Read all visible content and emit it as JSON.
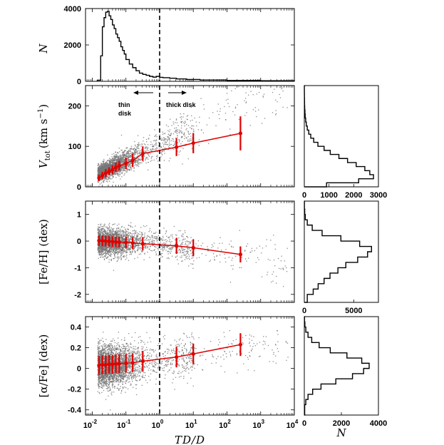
{
  "chart_data": [
    {
      "type": "histogram",
      "panel": "top",
      "ylabel": "N",
      "ylim": [
        0,
        4000
      ],
      "yticks": [
        "0",
        "2000",
        "4000"
      ],
      "x_log": true,
      "xlim_log10": [
        -2.2,
        4.0
      ],
      "bins_log10": [
        -1.85,
        -1.75,
        -1.7,
        -1.65,
        -1.6,
        -1.55,
        -1.5,
        -1.45,
        -1.4,
        -1.35,
        -1.3,
        -1.25,
        -1.2,
        -1.15,
        -1.1,
        -1.05,
        -1.0,
        -0.9,
        -0.8,
        -0.7,
        -0.6,
        -0.5,
        -0.4,
        -0.3,
        -0.2,
        -0.1,
        0.0,
        0.1,
        0.3,
        0.5,
        0.8,
        1.2,
        2.0,
        3.0,
        4.0
      ],
      "counts": [
        60,
        1400,
        3000,
        3500,
        3800,
        3850,
        3600,
        3400,
        3100,
        2900,
        2600,
        2400,
        2200,
        1900,
        1700,
        1500,
        1200,
        950,
        750,
        580,
        450,
        380,
        330,
        270,
        230,
        270,
        220,
        200,
        170,
        130,
        100,
        70,
        45,
        30
      ]
    },
    {
      "type": "scatter",
      "panel": "vtot",
      "ylabel_math": "V",
      "ylabel_sub": "tot",
      "ylabel_units": "(km s",
      "ylabel_exp": "−1",
      "ylabel_close": ")",
      "ylim": [
        0,
        250
      ],
      "yticks": [
        "0",
        "100",
        "200"
      ],
      "annotations": {
        "thin": [
          "thin",
          "disk"
        ],
        "thick": "thick disk"
      },
      "trend_x_log10": [
        -1.8,
        -1.7,
        -1.6,
        -1.5,
        -1.4,
        -1.3,
        -1.2,
        -1.0,
        -0.8,
        -0.5,
        0.5,
        1.0,
        2.4
      ],
      "trend_y": [
        22,
        28,
        34,
        38,
        42,
        48,
        52,
        58,
        65,
        82,
        98,
        108,
        132
      ],
      "trend_err": [
        8,
        9,
        10,
        10,
        11,
        12,
        12,
        14,
        16,
        18,
        22,
        25,
        42
      ]
    },
    {
      "type": "scatter",
      "panel": "feh",
      "ylabel": "[Fe/H] (dex)",
      "ylim": [
        -2.3,
        1.5
      ],
      "yticks": [
        "-2",
        "-1",
        "0",
        "1"
      ],
      "trend_x_log10": [
        -1.8,
        -1.7,
        -1.6,
        -1.5,
        -1.4,
        -1.3,
        -1.2,
        -1.0,
        -0.8,
        -0.5,
        0.5,
        1.0,
        2.4
      ],
      "trend_y": [
        0.02,
        0.01,
        0.0,
        -0.01,
        -0.02,
        -0.03,
        -0.04,
        -0.05,
        -0.07,
        -0.1,
        -0.18,
        -0.25,
        -0.5
      ],
      "trend_err": [
        0.2,
        0.2,
        0.2,
        0.2,
        0.2,
        0.2,
        0.2,
        0.22,
        0.22,
        0.25,
        0.3,
        0.32,
        0.3
      ]
    },
    {
      "type": "scatter",
      "panel": "afe",
      "ylabel": "[α/Fe] (dex)",
      "ylim": [
        -0.45,
        0.5
      ],
      "yticks": [
        "-0.4",
        "-0.2",
        "0",
        "0.2",
        "0.4"
      ],
      "xlabel": "TD/D",
      "xticks": [
        "10",
        "10",
        "10",
        "10",
        "10",
        "10",
        "10"
      ],
      "xtick_exp": [
        "-2",
        "-1",
        "0",
        "1",
        "2",
        "3",
        "4"
      ],
      "trend_x_log10": [
        -1.8,
        -1.7,
        -1.6,
        -1.5,
        -1.4,
        -1.3,
        -1.2,
        -1.0,
        -0.8,
        -0.5,
        0.5,
        1.0,
        2.4
      ],
      "trend_y": [
        0.03,
        0.035,
        0.035,
        0.04,
        0.04,
        0.045,
        0.045,
        0.05,
        0.055,
        0.07,
        0.11,
        0.14,
        0.23
      ],
      "trend_err": [
        0.09,
        0.09,
        0.09,
        0.09,
        0.09,
        0.09,
        0.09,
        0.09,
        0.09,
        0.1,
        0.1,
        0.1,
        0.11
      ]
    },
    {
      "type": "histogram",
      "panel": "right-vtot",
      "orientation": "horizontal",
      "xticks": [
        "0",
        "1000",
        "2000",
        "3000"
      ],
      "xlim": [
        0,
        3000
      ],
      "ylim": [
        0,
        250
      ],
      "bins": [
        0,
        10,
        20,
        30,
        40,
        50,
        60,
        70,
        80,
        90,
        100,
        110,
        120,
        130,
        140,
        150,
        160,
        170,
        180,
        190,
        200,
        210,
        220,
        230,
        240,
        250
      ],
      "counts": [
        900,
        2200,
        2800,
        2650,
        2450,
        2100,
        1750,
        1400,
        1050,
        800,
        550,
        380,
        260,
        180,
        120,
        80,
        55,
        35,
        25,
        15,
        10,
        8,
        5,
        3,
        2
      ]
    },
    {
      "type": "histogram",
      "panel": "right-feh",
      "orientation": "horizontal",
      "xticks": [
        "0",
        "5000"
      ],
      "xlim": [
        0,
        7500
      ],
      "ylim": [
        -2.3,
        1.5
      ],
      "bins": [
        -2.3,
        -2.0,
        -1.8,
        -1.6,
        -1.4,
        -1.2,
        -1.0,
        -0.8,
        -0.6,
        -0.4,
        -0.2,
        0.0,
        0.2,
        0.4,
        0.6,
        0.8,
        1.0,
        1.2,
        1.5
      ],
      "counts": [
        300,
        900,
        1400,
        2000,
        2600,
        3400,
        4200,
        5400,
        6400,
        6800,
        5600,
        3700,
        1800,
        800,
        300,
        100,
        40,
        10
      ]
    },
    {
      "type": "histogram",
      "panel": "right-afe",
      "orientation": "horizontal",
      "xticks": [
        "0",
        "2000",
        "4000"
      ],
      "xlabel": "N",
      "xlim": [
        0,
        4000
      ],
      "ylim": [
        -0.45,
        0.5
      ],
      "bins": [
        -0.45,
        -0.35,
        -0.3,
        -0.25,
        -0.2,
        -0.15,
        -0.1,
        -0.05,
        0.0,
        0.05,
        0.1,
        0.15,
        0.2,
        0.25,
        0.3,
        0.35,
        0.4,
        0.45,
        0.5
      ],
      "counts": [
        20,
        80,
        200,
        450,
        900,
        1700,
        2600,
        3200,
        3500,
        3100,
        2300,
        1400,
        800,
        400,
        200,
        80,
        30,
        10
      ]
    }
  ],
  "colors": {
    "trend": "#e00000",
    "points": "#777777",
    "axes": "#000000"
  }
}
